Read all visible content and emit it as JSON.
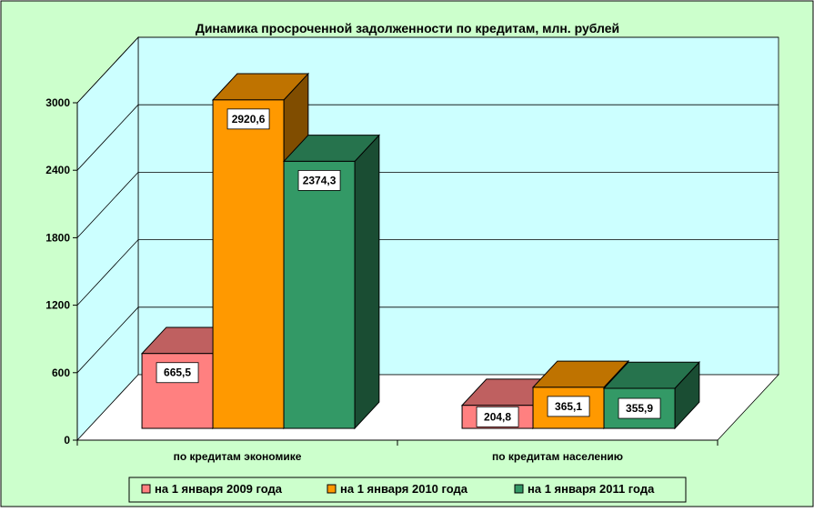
{
  "chart_data": {
    "type": "bar",
    "title": "Динамика просроченной задолженности по кредитам, млн. рублей",
    "categories": [
      "по кредитам экономике",
      "по кредитам населению"
    ],
    "series": [
      {
        "name": "на 1 января 2009 года",
        "values": [
          665.5,
          204.8
        ],
        "labels": [
          "665,5",
          "204,8"
        ],
        "color": "#ff8080"
      },
      {
        "name": "на 1 января 2010 года",
        "values": [
          2920.6,
          365.1
        ],
        "labels": [
          "2920,6",
          "365,1"
        ],
        "color": "#ff9900"
      },
      {
        "name": "на 1 января 2011 года",
        "values": [
          2374.3,
          355.9
        ],
        "labels": [
          "2374,3",
          "355,9"
        ],
        "color": "#339966"
      }
    ],
    "yticks": [
      "0",
      "600",
      "1200",
      "1800",
      "2400",
      "3000"
    ],
    "ylim": [
      0,
      3000
    ],
    "grid": true,
    "legend_position": "bottom",
    "colors": {
      "background": "#ccffcc",
      "plot_wall": "#ccffff",
      "floor": "#ffffff"
    }
  }
}
